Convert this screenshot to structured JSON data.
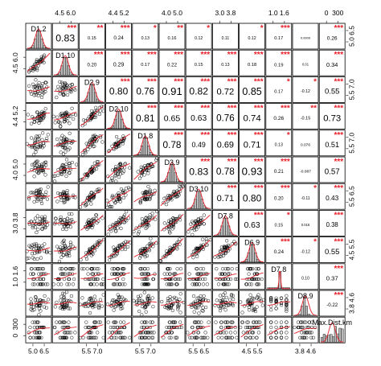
{
  "chart_data": {
    "type": "scatter-matrix",
    "title": "",
    "variables": [
      "D1.2",
      "D1.10",
      "D2.9",
      "D2.10",
      "D1.8",
      "D3.9",
      "D3.10",
      "D7.8",
      "D6.9",
      "D7.8",
      "D8.9",
      "Max.Dist.km"
    ],
    "diagonal_labels": [
      "D1.2",
      "D1.10",
      "D2.9",
      "D2.10",
      "D1.8",
      "D3.9",
      "D3.10",
      "D7.8",
      "D6.9",
      "D7.8",
      "D8.9",
      "Max.Dist.km"
    ],
    "correlations": [
      [
        null,
        "0.83",
        "0.15",
        "0.24",
        "0.13",
        "0.16",
        "0.12",
        "0.11",
        "0.12",
        "0.17",
        "0.0009",
        "0.26"
      ],
      [
        null,
        null,
        "0.20",
        "0.29",
        "0.17",
        "0.22",
        "0.15",
        "0.13",
        "0.18",
        "0.19",
        "0.01",
        "0.34"
      ],
      [
        null,
        null,
        null,
        "0.80",
        "0.76",
        "0.91",
        "0.82",
        "0.72",
        "0.85",
        "0.17",
        "-0.12",
        "0.55"
      ],
      [
        null,
        null,
        null,
        null,
        "0.81",
        "0.65",
        "0.63",
        "0.76",
        "0.74",
        "0.26",
        "-0.15",
        "0.73"
      ],
      [
        null,
        null,
        null,
        null,
        null,
        "0.78",
        "0.49",
        "0.69",
        "0.71",
        "0.13",
        "0.076",
        "0.51"
      ],
      [
        null,
        null,
        null,
        null,
        null,
        null,
        "0.83",
        "0.78",
        "0.93",
        "0.21",
        "-0.087",
        "0.57"
      ],
      [
        null,
        null,
        null,
        null,
        null,
        null,
        null,
        "0.71",
        "0.80",
        "0.20",
        "-0.11",
        "0.43"
      ],
      [
        null,
        null,
        null,
        null,
        null,
        null,
        null,
        null,
        "0.63",
        "0.15",
        "0.016",
        "0.38"
      ],
      [
        null,
        null,
        null,
        null,
        null,
        null,
        null,
        null,
        null,
        "0.24",
        "-0.12",
        "0.55"
      ],
      [
        null,
        null,
        null,
        null,
        null,
        null,
        null,
        null,
        null,
        null,
        "0.10",
        "0.37"
      ],
      [
        null,
        null,
        null,
        null,
        null,
        null,
        null,
        null,
        null,
        null,
        null,
        "-0.22"
      ],
      [
        null,
        null,
        null,
        null,
        null,
        null,
        null,
        null,
        null,
        null,
        null,
        null
      ]
    ],
    "stars": [
      [
        null,
        "***",
        "**",
        "***",
        "*",
        "**",
        "*",
        "",
        "*",
        "***",
        "",
        "***"
      ],
      [
        null,
        null,
        "***",
        "***",
        "***",
        "***",
        "***",
        "***",
        "***",
        "***",
        "",
        "***"
      ],
      [
        null,
        null,
        null,
        "***",
        "***",
        "***",
        "***",
        "***",
        "***",
        "*",
        "*",
        "***"
      ],
      [
        null,
        null,
        null,
        null,
        "***",
        "***",
        "***",
        "***",
        "***",
        "***",
        "**",
        "***"
      ],
      [
        null,
        null,
        null,
        null,
        null,
        "***",
        "***",
        "***",
        "***",
        "*",
        "",
        "***"
      ],
      [
        null,
        null,
        null,
        null,
        null,
        null,
        "***",
        "***",
        "***",
        "***",
        "",
        "***"
      ],
      [
        null,
        null,
        null,
        null,
        null,
        null,
        null,
        "***",
        "***",
        "***",
        "*",
        "***"
      ],
      [
        null,
        null,
        null,
        null,
        null,
        null,
        null,
        null,
        "***",
        "*",
        "",
        "***"
      ],
      [
        null,
        null,
        null,
        null,
        null,
        null,
        null,
        null,
        null,
        "***",
        "*",
        "***"
      ],
      [
        null,
        null,
        null,
        null,
        null,
        null,
        null,
        null,
        null,
        null,
        "",
        "***"
      ],
      [
        null,
        null,
        null,
        null,
        null,
        null,
        null,
        null,
        null,
        null,
        null,
        "***"
      ],
      [
        null,
        null,
        null,
        null,
        null,
        null,
        null,
        null,
        null,
        null,
        null,
        null
      ]
    ],
    "top_axis_ticks": [
      {
        "column": 1,
        "labels": [
          "4.5",
          "6.0"
        ]
      },
      {
        "column": 3,
        "labels": [
          "4.4",
          "5.2"
        ]
      },
      {
        "column": 5,
        "labels": [
          "4.0",
          "5.0"
        ]
      },
      {
        "column": 7,
        "labels": [
          "3.0",
          "3.8"
        ]
      },
      {
        "column": 9,
        "labels": [
          "1.0",
          "1.6"
        ]
      },
      {
        "column": 11,
        "labels": [
          "0",
          "300"
        ]
      }
    ],
    "bottom_axis_ticks": [
      {
        "column": 0,
        "labels": [
          "5.0",
          "6.5"
        ]
      },
      {
        "column": 2,
        "labels": [
          "5.5",
          "7.0"
        ]
      },
      {
        "column": 4,
        "labels": [
          "5.5",
          "7.0"
        ]
      },
      {
        "column": 6,
        "labels": [
          "5.5",
          "6.5"
        ]
      },
      {
        "column": 8,
        "labels": [
          "4.5",
          "5.5"
        ]
      },
      {
        "column": 10,
        "labels": [
          "3.8",
          "4.6"
        ]
      }
    ],
    "left_axis_ticks": [
      {
        "row": 1,
        "labels": [
          "4.5",
          "6.0"
        ]
      },
      {
        "row": 3,
        "labels": [
          "4.4",
          "5.2"
        ]
      },
      {
        "row": 5,
        "labels": [
          "4.0",
          "5.0"
        ]
      },
      {
        "row": 7,
        "labels": [
          "3.0",
          "3.8"
        ]
      },
      {
        "row": 9,
        "labels": [
          "1.0",
          "1.6"
        ]
      },
      {
        "row": 11,
        "labels": [
          "0",
          "300"
        ]
      }
    ],
    "right_axis_ticks": [
      {
        "row": 0,
        "labels": [
          "5.0",
          "6.5"
        ]
      },
      {
        "row": 2,
        "labels": [
          "5.5",
          "7.0"
        ]
      },
      {
        "row": 4,
        "labels": [
          "5.5",
          "7.0"
        ]
      },
      {
        "row": 6,
        "labels": [
          "5.5",
          "6.5"
        ]
      },
      {
        "row": 8,
        "labels": [
          "4.5",
          "5.5"
        ]
      },
      {
        "row": 10,
        "labels": [
          "3.8",
          "4.6"
        ]
      }
    ],
    "colors": {
      "star": "#e8202a",
      "smooth": "#e8202a",
      "point": "#000000",
      "hist": "#b9b9b9"
    },
    "grid": false,
    "legend": "none"
  }
}
